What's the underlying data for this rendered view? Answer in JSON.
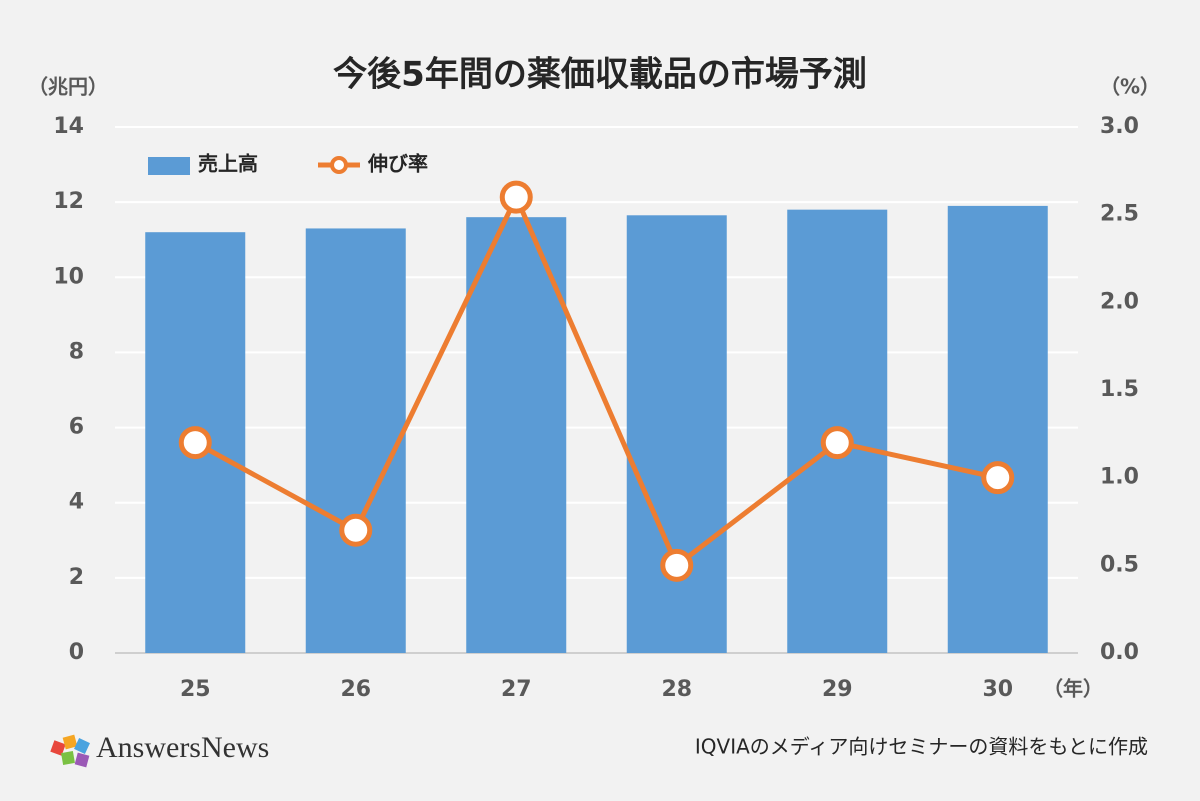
{
  "chart_data": {
    "type": "bar_line",
    "title": "今後5年間の薬価収載品の市場予測",
    "y_label": "（兆円）",
    "y2_label": "（%）",
    "x_label": "（年）",
    "categories": [
      "25",
      "26",
      "27",
      "28",
      "29",
      "30"
    ],
    "series": [
      {
        "name": "売上高",
        "type": "bar",
        "color": "#5b9bd5",
        "values": [
          11.2,
          11.3,
          11.6,
          11.65,
          11.8,
          11.9
        ]
      },
      {
        "name": "伸び率",
        "type": "line",
        "axis": "y2",
        "color": "#ed7d31",
        "values": [
          1.2,
          0.7,
          2.6,
          0.5,
          1.2,
          1.0
        ]
      }
    ],
    "ylim": [
      0,
      14
    ],
    "yticks": [
      0,
      2,
      4,
      6,
      8,
      10,
      12,
      14
    ],
    "y2lim": [
      0,
      3
    ],
    "y2ticks": [
      {
        "value": 0,
        "label": "0.0"
      },
      0.5,
      {
        "value": 1,
        "label": "1.0"
      },
      1.5,
      {
        "value": 2,
        "label": "2.0"
      },
      2.5,
      {
        "value": 3,
        "label": "3.0"
      }
    ],
    "grid": true,
    "legend": "top-left"
  },
  "footer": {
    "logo": "AnswersNews",
    "source": "IQVIAのメディア向けセミナーの資料をもとに作成"
  }
}
